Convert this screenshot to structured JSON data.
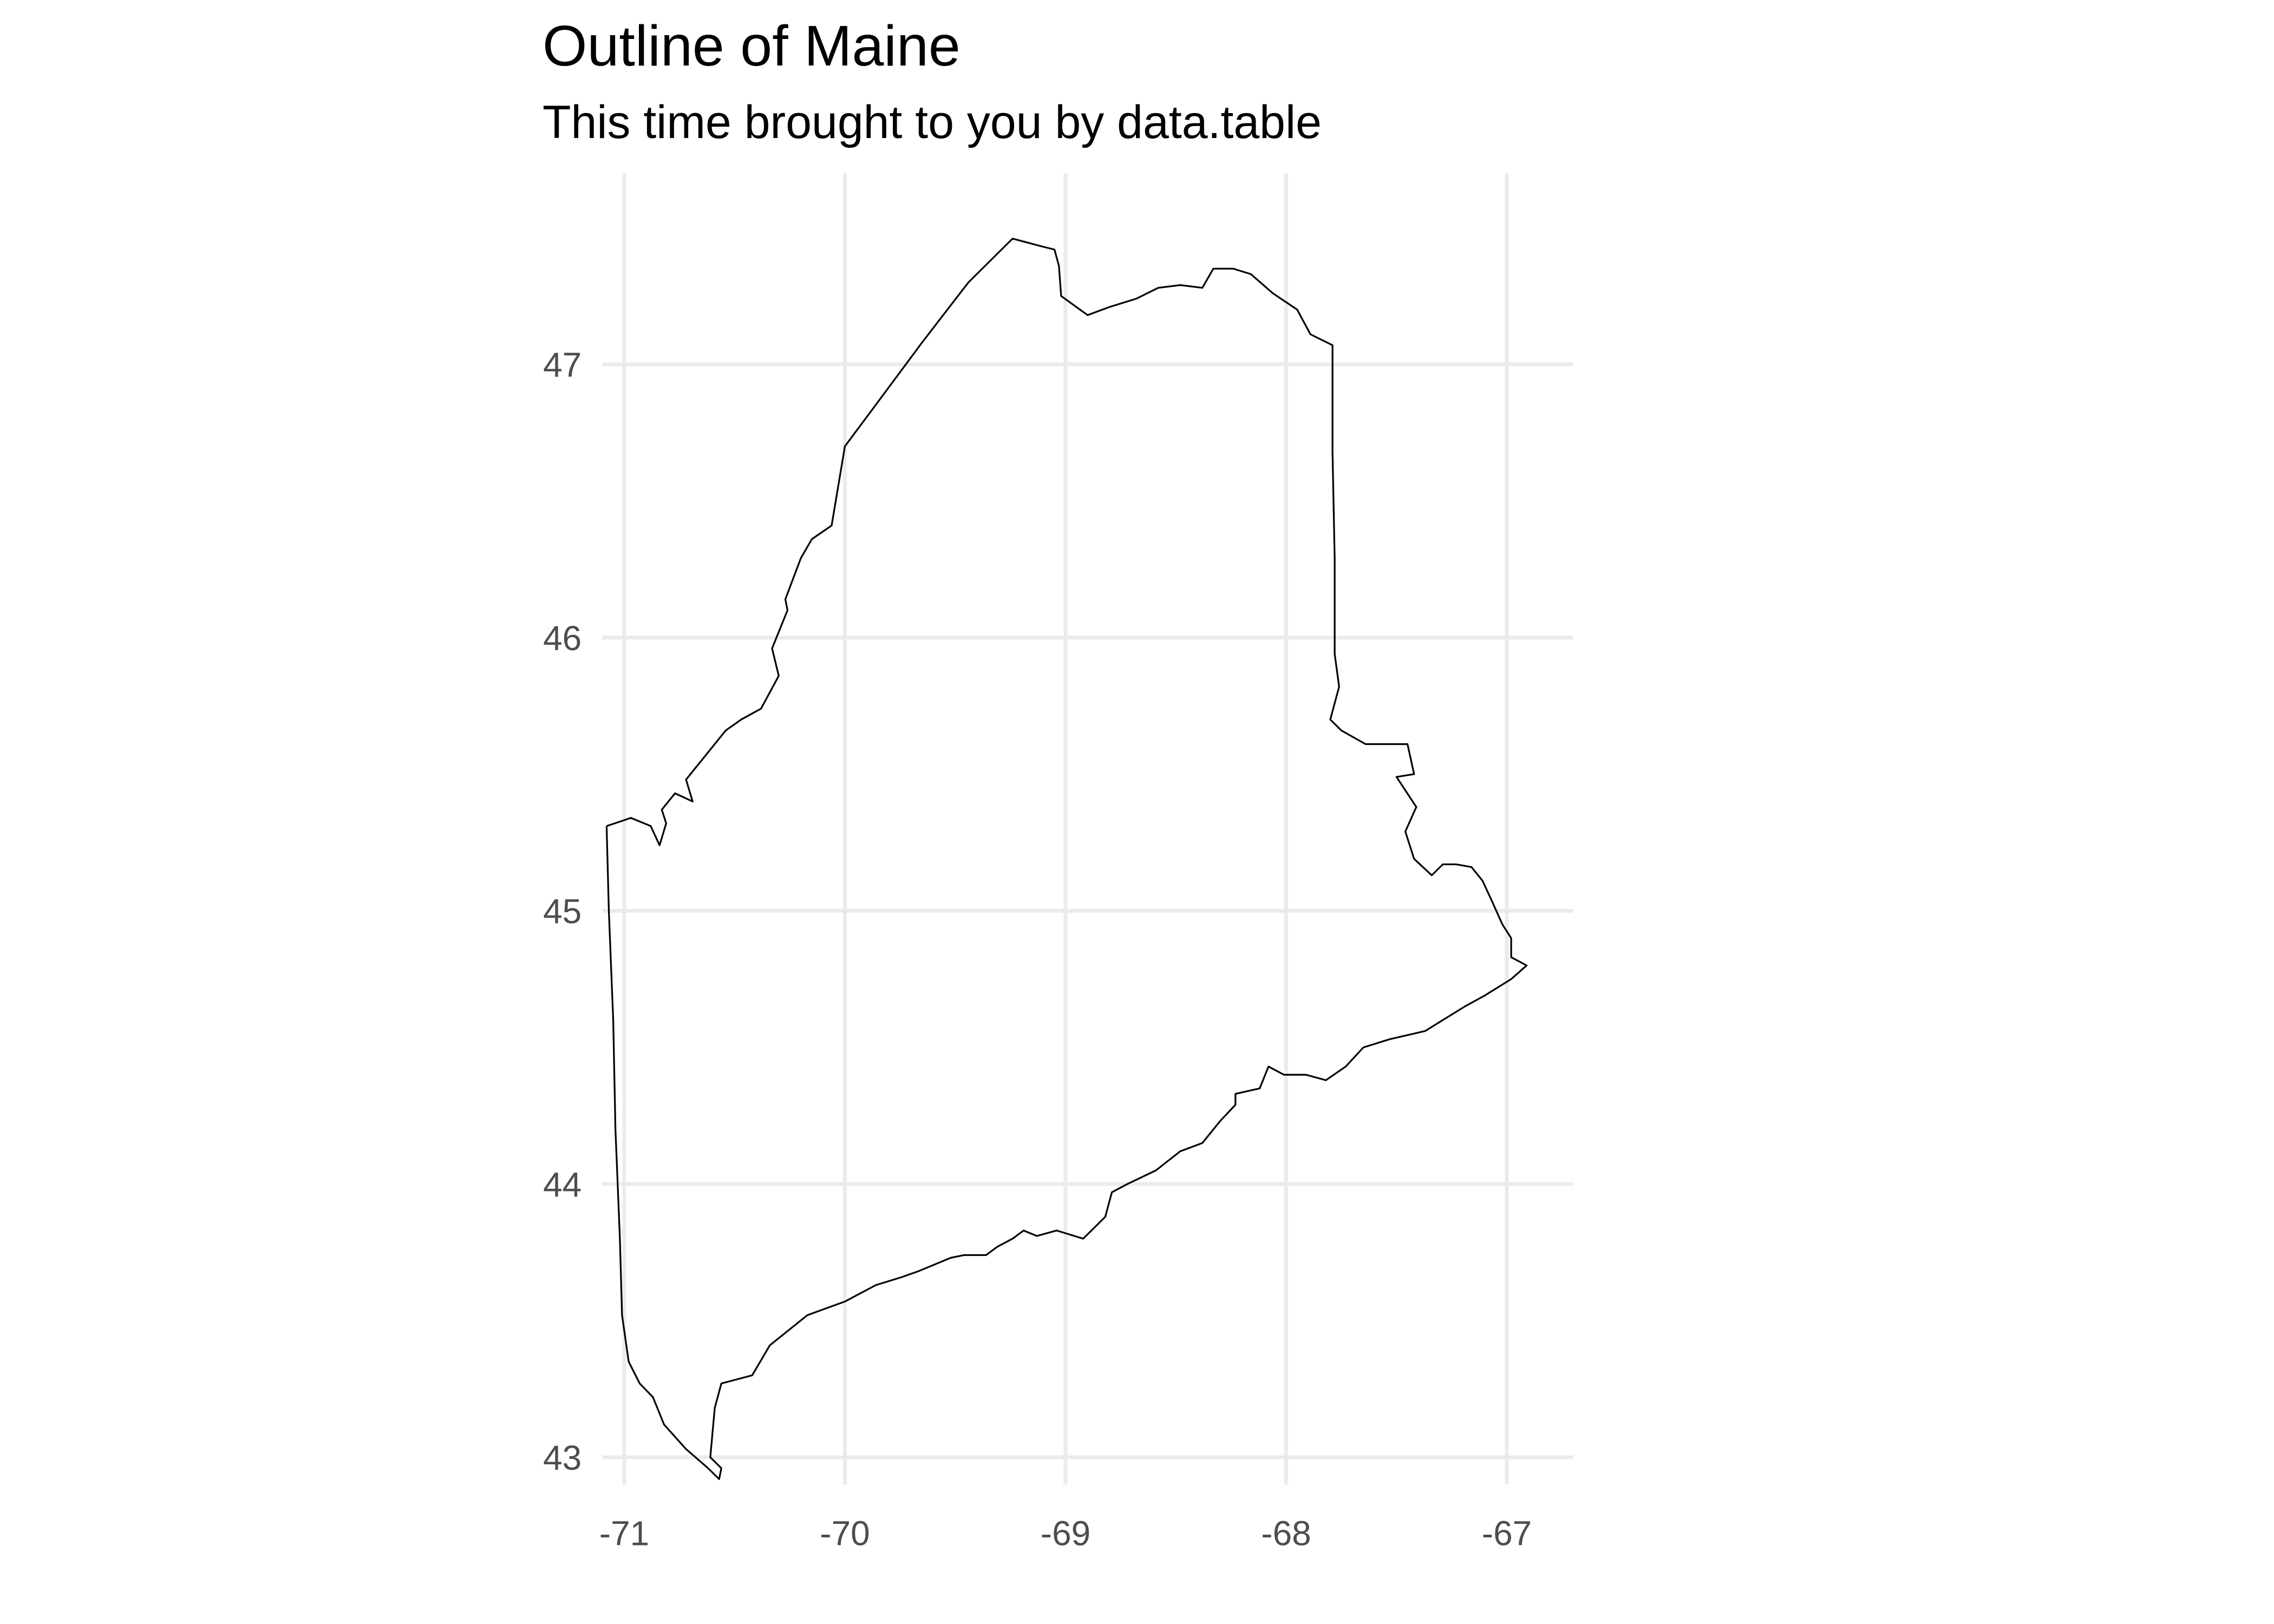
{
  "chart_data": {
    "type": "line",
    "title": "Outline of Maine",
    "subtitle": "This time brought to you by data.table",
    "xlabel": "",
    "ylabel": "",
    "xlim": [
      -71.1,
      -66.7
    ],
    "ylim": [
      42.9,
      47.7
    ],
    "x_ticks": [
      -71,
      -70,
      -69,
      -68,
      -67
    ],
    "y_ticks": [
      43,
      44,
      45,
      46,
      47
    ],
    "x_tick_labels": [
      "-71",
      "-70",
      "-69",
      "-68",
      "-67"
    ],
    "y_tick_labels": [
      "43",
      "44",
      "45",
      "46",
      "47"
    ],
    "grid": true,
    "legend": "none",
    "line_color": "#000000",
    "grid_color": "#ebebeb",
    "series": [
      {
        "points": [
          [
            -71.08,
            45.31
          ],
          [
            -70.97,
            45.34
          ],
          [
            -70.88,
            45.31
          ],
          [
            -70.84,
            45.24
          ],
          [
            -70.81,
            45.32
          ],
          [
            -70.83,
            45.37
          ],
          [
            -70.77,
            45.43
          ],
          [
            -70.69,
            45.4
          ],
          [
            -70.72,
            45.48
          ],
          [
            -70.64,
            45.56
          ],
          [
            -70.54,
            45.66
          ],
          [
            -70.47,
            45.7
          ],
          [
            -70.38,
            45.74
          ],
          [
            -70.3,
            45.86
          ],
          [
            -70.33,
            45.96
          ],
          [
            -70.26,
            46.1
          ],
          [
            -70.27,
            46.14
          ],
          [
            -70.2,
            46.29
          ],
          [
            -70.15,
            46.36
          ],
          [
            -70.06,
            46.41
          ],
          [
            -70.0,
            46.7
          ],
          [
            -69.88,
            46.83
          ],
          [
            -69.65,
            47.08
          ],
          [
            -69.44,
            47.3
          ],
          [
            -69.24,
            47.46
          ],
          [
            -69.1,
            47.43
          ],
          [
            -69.05,
            47.42
          ],
          [
            -69.03,
            47.36
          ],
          [
            -69.02,
            47.25
          ],
          [
            -68.9,
            47.18
          ],
          [
            -68.8,
            47.21
          ],
          [
            -68.68,
            47.24
          ],
          [
            -68.58,
            47.28
          ],
          [
            -68.48,
            47.29
          ],
          [
            -68.38,
            47.28
          ],
          [
            -68.33,
            47.35
          ],
          [
            -68.24,
            47.35
          ],
          [
            -68.16,
            47.33
          ],
          [
            -68.06,
            47.26
          ],
          [
            -67.95,
            47.2
          ],
          [
            -67.89,
            47.11
          ],
          [
            -67.79,
            47.07
          ],
          [
            -67.79,
            46.68
          ],
          [
            -67.78,
            46.29
          ],
          [
            -67.78,
            45.94
          ],
          [
            -67.76,
            45.82
          ],
          [
            -67.8,
            45.7
          ],
          [
            -67.75,
            45.66
          ],
          [
            -67.64,
            45.61
          ],
          [
            -67.45,
            45.61
          ],
          [
            -67.42,
            45.5
          ],
          [
            -67.5,
            45.49
          ],
          [
            -67.41,
            45.38
          ],
          [
            -67.46,
            45.29
          ],
          [
            -67.42,
            45.19
          ],
          [
            -67.34,
            45.13
          ],
          [
            -67.29,
            45.17
          ],
          [
            -67.23,
            45.17
          ],
          [
            -67.16,
            45.16
          ],
          [
            -67.11,
            45.11
          ],
          [
            -67.07,
            45.04
          ],
          [
            -67.02,
            44.95
          ],
          [
            -66.98,
            44.9
          ],
          [
            -66.98,
            44.83
          ],
          [
            -66.91,
            44.8
          ],
          [
            -66.98,
            44.75
          ],
          [
            -67.1,
            44.69
          ],
          [
            -67.19,
            44.65
          ],
          [
            -67.29,
            44.6
          ],
          [
            -67.37,
            44.56
          ],
          [
            -67.53,
            44.53
          ],
          [
            -67.65,
            44.5
          ],
          [
            -67.73,
            44.43
          ],
          [
            -67.82,
            44.38
          ],
          [
            -67.91,
            44.4
          ],
          [
            -68.01,
            44.4
          ],
          [
            -68.08,
            44.43
          ],
          [
            -68.12,
            44.35
          ],
          [
            -68.23,
            44.33
          ],
          [
            -68.23,
            44.29
          ],
          [
            -68.3,
            44.23
          ],
          [
            -68.38,
            44.15
          ],
          [
            -68.48,
            44.12
          ],
          [
            -68.59,
            44.05
          ],
          [
            -68.72,
            44.0
          ],
          [
            -68.79,
            43.97
          ],
          [
            -68.82,
            43.88
          ],
          [
            -68.92,
            43.8
          ],
          [
            -69.04,
            43.83
          ],
          [
            -69.13,
            43.81
          ],
          [
            -69.19,
            43.83
          ],
          [
            -69.24,
            43.8
          ],
          [
            -69.31,
            43.77
          ],
          [
            -69.36,
            43.74
          ],
          [
            -69.46,
            43.74
          ],
          [
            -69.52,
            43.73
          ],
          [
            -69.67,
            43.68
          ],
          [
            -69.74,
            43.66
          ],
          [
            -69.86,
            43.63
          ],
          [
            -70.0,
            43.57
          ],
          [
            -70.17,
            43.52
          ],
          [
            -70.34,
            43.41
          ],
          [
            -70.42,
            43.3
          ],
          [
            -70.56,
            43.27
          ],
          [
            -70.59,
            43.18
          ],
          [
            -70.6,
            43.09
          ],
          [
            -70.61,
            43.0
          ],
          [
            -70.56,
            42.96
          ],
          [
            -70.57,
            42.92
          ],
          [
            -70.62,
            42.96
          ],
          [
            -70.72,
            43.03
          ],
          [
            -70.82,
            43.12
          ],
          [
            -70.87,
            43.22
          ],
          [
            -70.93,
            43.27
          ],
          [
            -70.98,
            43.35
          ],
          [
            -71.01,
            43.52
          ],
          [
            -71.02,
            43.8
          ],
          [
            -71.04,
            44.2
          ],
          [
            -71.05,
            44.6
          ],
          [
            -71.07,
            45.0
          ],
          [
            -71.08,
            45.31
          ]
        ]
      }
    ]
  }
}
